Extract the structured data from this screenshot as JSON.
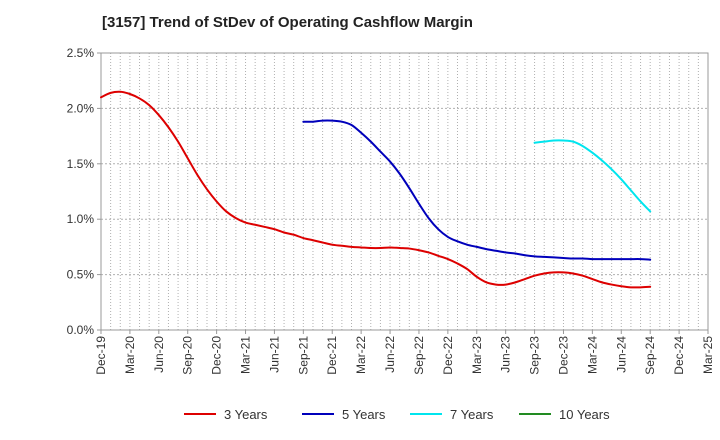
{
  "chart_data": {
    "type": "line",
    "title": "[3157]  Trend of StDev of Operating Cashflow Margin",
    "xlabel": "",
    "ylabel": "",
    "x_tick_labels": [
      "Dec-19",
      "Mar-20",
      "Jun-20",
      "Sep-20",
      "Dec-20",
      "Mar-21",
      "Jun-21",
      "Sep-21",
      "Dec-21",
      "Mar-22",
      "Jun-22",
      "Sep-22",
      "Dec-22",
      "Mar-23",
      "Jun-23",
      "Sep-23",
      "Dec-23",
      "Mar-24",
      "Jun-24",
      "Sep-24",
      "Dec-24",
      "Mar-25"
    ],
    "y_tick_labels": [
      "0.0%",
      "0.5%",
      "1.0%",
      "1.5%",
      "2.0%",
      "2.5%"
    ],
    "ylim": [
      0,
      2.5
    ],
    "y_unit": "%",
    "grid": true,
    "legend_position": "bottom",
    "series": [
      {
        "name": "3 Years",
        "color": "#dd0000",
        "points": [
          [
            "Dec-19",
            2.1
          ],
          [
            "Jan-20",
            2.14
          ],
          [
            "Feb-20",
            2.15
          ],
          [
            "Mar-20",
            2.13
          ],
          [
            "Apr-20",
            2.09
          ],
          [
            "May-20",
            2.03
          ],
          [
            "Jun-20",
            1.94
          ],
          [
            "Jul-20",
            1.83
          ],
          [
            "Aug-20",
            1.7
          ],
          [
            "Sep-20",
            1.55
          ],
          [
            "Oct-20",
            1.4
          ],
          [
            "Nov-20",
            1.27
          ],
          [
            "Dec-20",
            1.16
          ],
          [
            "Jan-21",
            1.07
          ],
          [
            "Feb-21",
            1.01
          ],
          [
            "Mar-21",
            0.97
          ],
          [
            "Apr-21",
            0.95
          ],
          [
            "May-21",
            0.93
          ],
          [
            "Jun-21",
            0.91
          ],
          [
            "Jul-21",
            0.88
          ],
          [
            "Aug-21",
            0.86
          ],
          [
            "Sep-21",
            0.83
          ],
          [
            "Oct-21",
            0.81
          ],
          [
            "Nov-21",
            0.79
          ],
          [
            "Dec-21",
            0.77
          ],
          [
            "Jan-22",
            0.76
          ],
          [
            "Feb-22",
            0.75
          ],
          [
            "Mar-22",
            0.745
          ],
          [
            "Apr-22",
            0.74
          ],
          [
            "May-22",
            0.74
          ],
          [
            "Jun-22",
            0.745
          ],
          [
            "Jul-22",
            0.74
          ],
          [
            "Aug-22",
            0.735
          ],
          [
            "Sep-22",
            0.72
          ],
          [
            "Oct-22",
            0.7
          ],
          [
            "Nov-22",
            0.67
          ],
          [
            "Dec-22",
            0.64
          ],
          [
            "Jan-23",
            0.6
          ],
          [
            "Feb-23",
            0.55
          ],
          [
            "Mar-23",
            0.48
          ],
          [
            "Apr-23",
            0.43
          ],
          [
            "May-23",
            0.41
          ],
          [
            "Jun-23",
            0.41
          ],
          [
            "Jul-23",
            0.43
          ],
          [
            "Aug-23",
            0.46
          ],
          [
            "Sep-23",
            0.49
          ],
          [
            "Oct-23",
            0.51
          ],
          [
            "Nov-23",
            0.52
          ],
          [
            "Dec-23",
            0.52
          ],
          [
            "Jan-24",
            0.51
          ],
          [
            "Feb-24",
            0.49
          ],
          [
            "Mar-24",
            0.46
          ],
          [
            "Apr-24",
            0.43
          ],
          [
            "May-24",
            0.41
          ],
          [
            "Jun-24",
            0.395
          ],
          [
            "Jul-24",
            0.385
          ],
          [
            "Aug-24",
            0.385
          ],
          [
            "Sep-24",
            0.39
          ]
        ]
      },
      {
        "name": "5 Years",
        "color": "#0000bb",
        "points": [
          [
            "Sep-21",
            1.88
          ],
          [
            "Oct-21",
            1.88
          ],
          [
            "Nov-21",
            1.89
          ],
          [
            "Dec-21",
            1.89
          ],
          [
            "Jan-22",
            1.88
          ],
          [
            "Feb-22",
            1.85
          ],
          [
            "Mar-22",
            1.78
          ],
          [
            "Apr-22",
            1.7
          ],
          [
            "May-22",
            1.61
          ],
          [
            "Jun-22",
            1.52
          ],
          [
            "Jul-22",
            1.41
          ],
          [
            "Aug-22",
            1.28
          ],
          [
            "Sep-22",
            1.14
          ],
          [
            "Oct-22",
            1.01
          ],
          [
            "Nov-22",
            0.91
          ],
          [
            "Dec-22",
            0.84
          ],
          [
            "Jan-23",
            0.8
          ],
          [
            "Feb-23",
            0.77
          ],
          [
            "Mar-23",
            0.75
          ],
          [
            "Apr-23",
            0.73
          ],
          [
            "May-23",
            0.715
          ],
          [
            "Jun-23",
            0.7
          ],
          [
            "Jul-23",
            0.69
          ],
          [
            "Aug-23",
            0.675
          ],
          [
            "Sep-23",
            0.665
          ],
          [
            "Oct-23",
            0.66
          ],
          [
            "Nov-23",
            0.655
          ],
          [
            "Dec-23",
            0.65
          ],
          [
            "Jan-24",
            0.645
          ],
          [
            "Feb-24",
            0.645
          ],
          [
            "Mar-24",
            0.64
          ],
          [
            "Apr-24",
            0.64
          ],
          [
            "May-24",
            0.64
          ],
          [
            "Jun-24",
            0.64
          ],
          [
            "Jul-24",
            0.64
          ],
          [
            "Aug-24",
            0.64
          ],
          [
            "Sep-24",
            0.635
          ]
        ]
      },
      {
        "name": "7 Years",
        "color": "#00e5ee",
        "points": [
          [
            "Sep-23",
            1.69
          ],
          [
            "Oct-23",
            1.7
          ],
          [
            "Nov-23",
            1.71
          ],
          [
            "Dec-23",
            1.71
          ],
          [
            "Jan-24",
            1.7
          ],
          [
            "Feb-24",
            1.66
          ],
          [
            "Mar-24",
            1.6
          ],
          [
            "Apr-24",
            1.53
          ],
          [
            "May-24",
            1.45
          ],
          [
            "Jun-24",
            1.36
          ],
          [
            "Jul-24",
            1.26
          ],
          [
            "Aug-24",
            1.16
          ],
          [
            "Sep-24",
            1.07
          ]
        ]
      },
      {
        "name": "10 Years",
        "color": "#228b22",
        "points": []
      }
    ]
  }
}
